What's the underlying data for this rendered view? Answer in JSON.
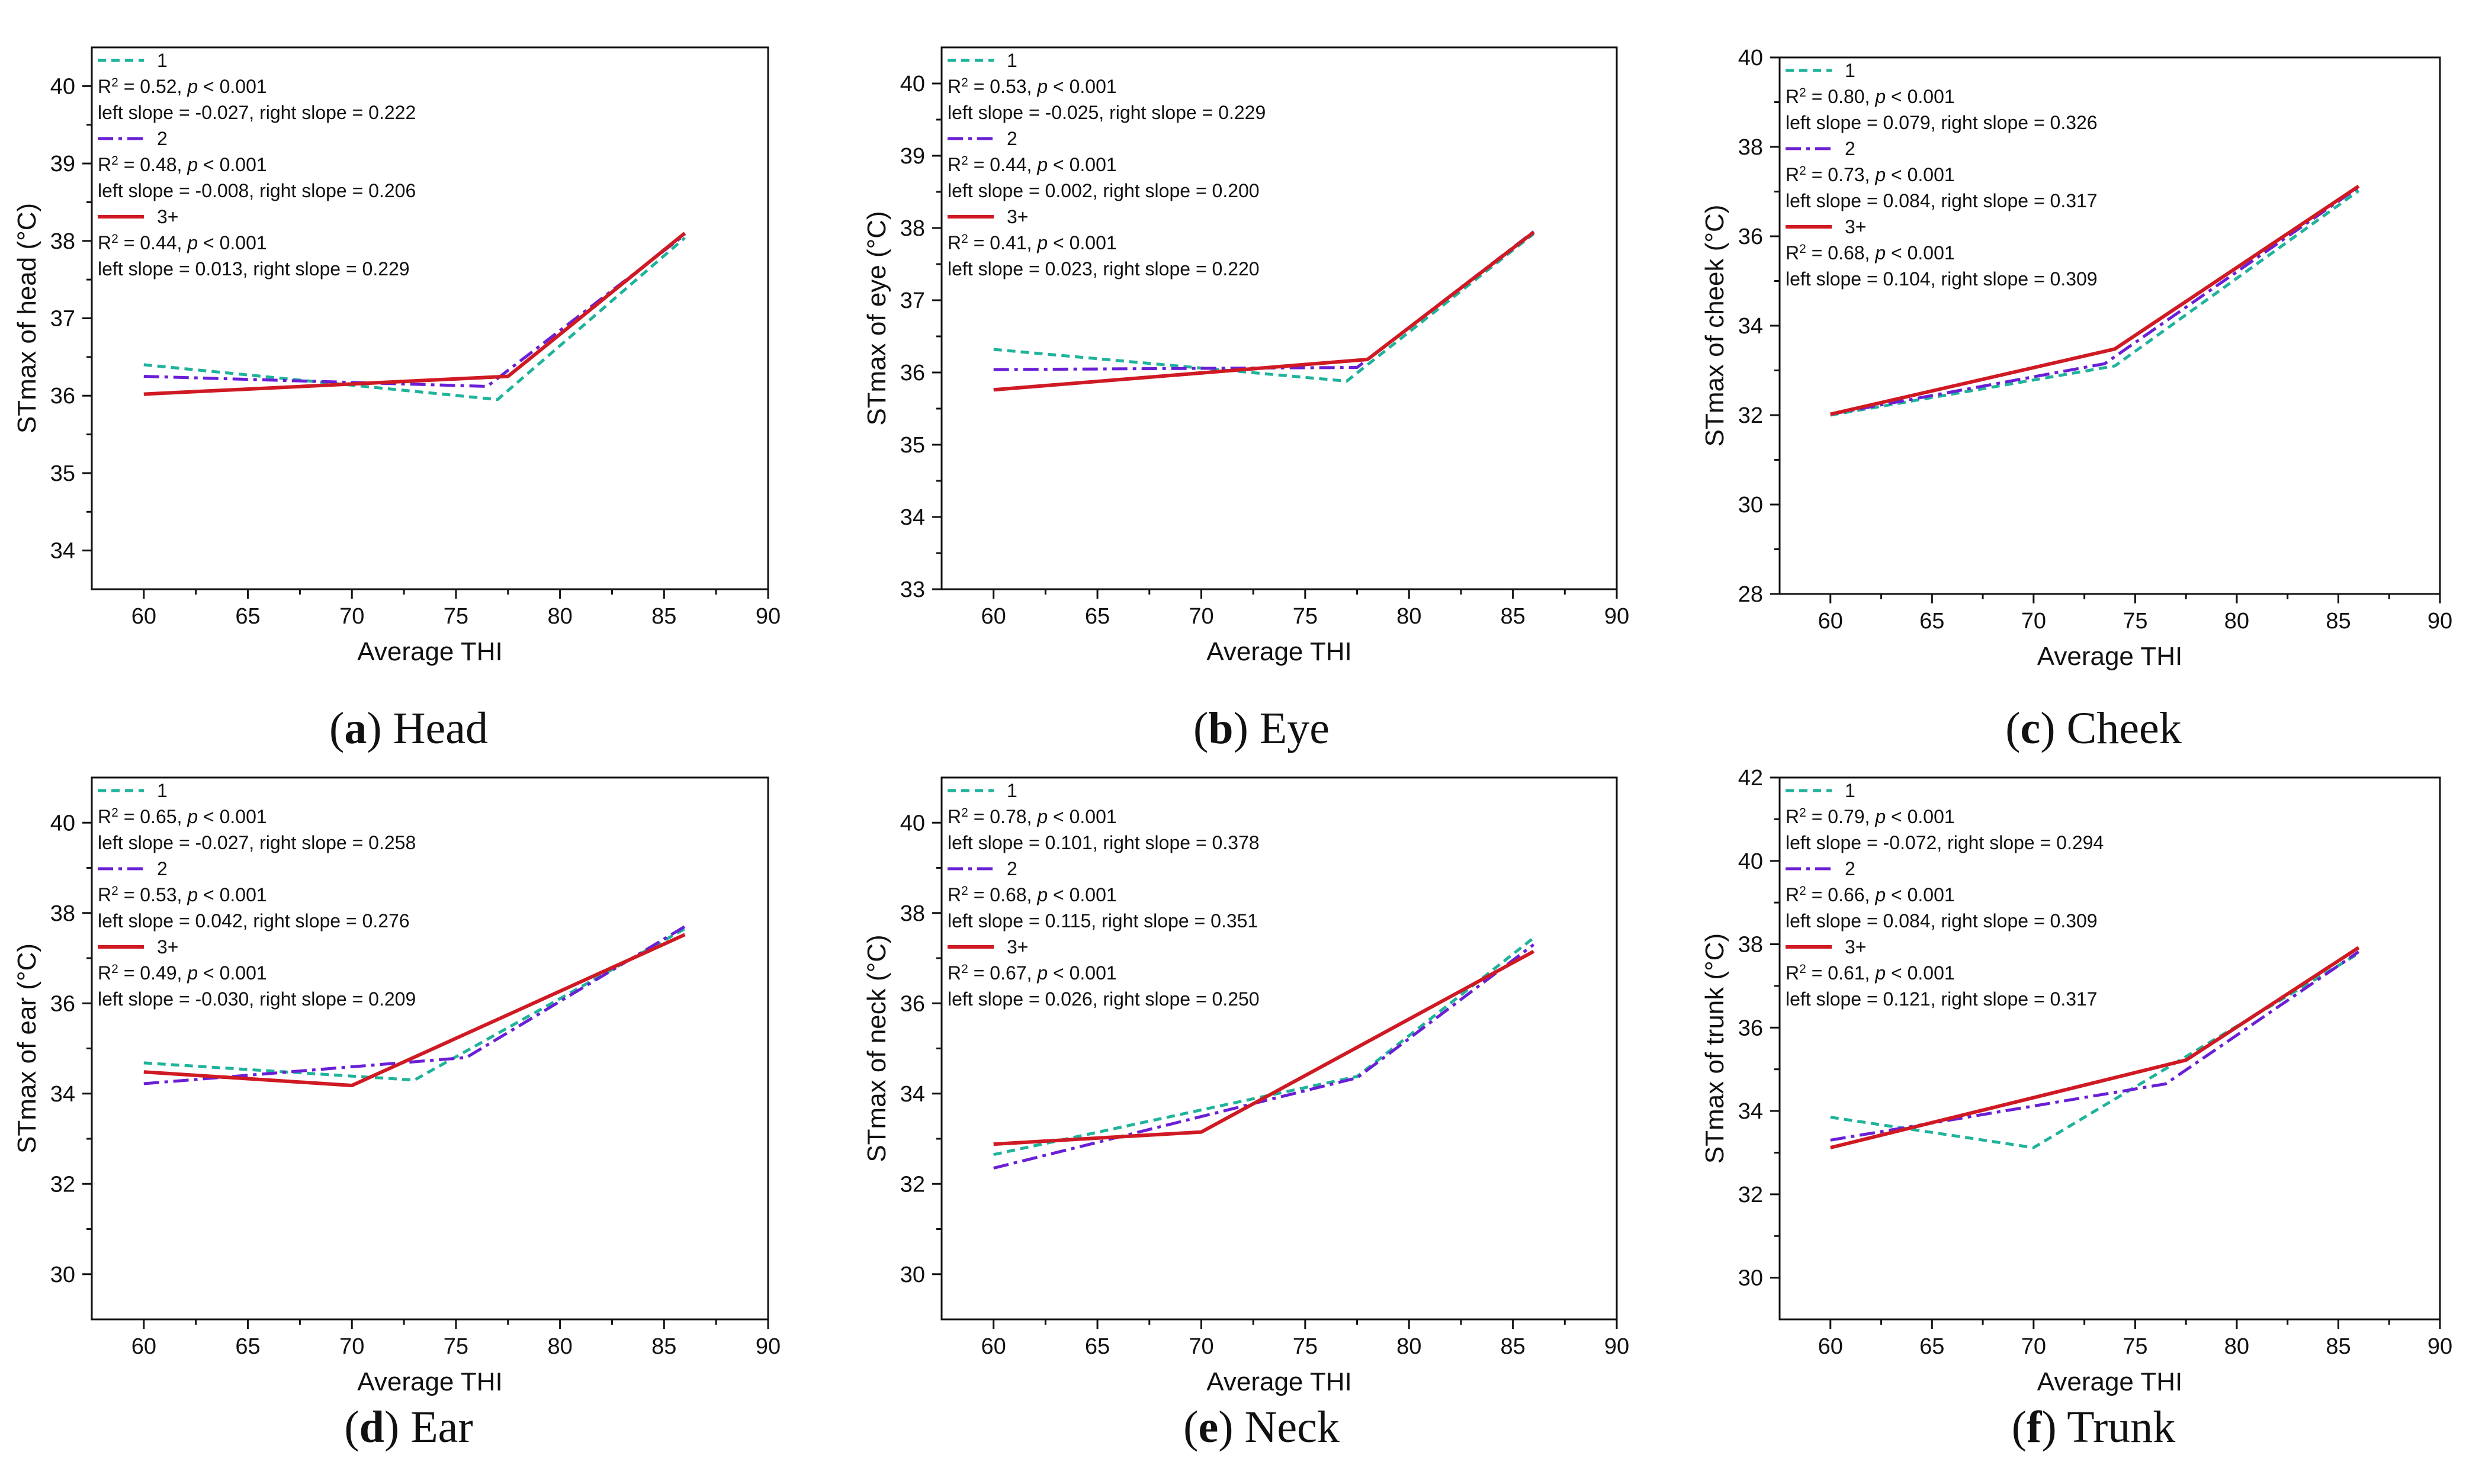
{
  "colors": {
    "s1": "#1fb39b",
    "s2": "#6a1fd6",
    "s3": "#cf1a24"
  },
  "chart_data": [
    {
      "type": "line",
      "panel": "a",
      "caption_letter": "a",
      "caption_text": "Head",
      "xlabel": "Average THI",
      "ylabel": "STmax of head (°C)",
      "xlim": [
        57.5,
        90
      ],
      "xticks": [
        60,
        65,
        70,
        75,
        80,
        85,
        90
      ],
      "ylim": [
        33.5,
        40.5
      ],
      "yticks": [
        34,
        35,
        36,
        37,
        38,
        39,
        40
      ],
      "legend_position": "top-left",
      "series": [
        {
          "name": "1",
          "r2": "0.52",
          "p_text": "0.001",
          "slopes": "left slope = -0.027, right slope = 0.222",
          "points": [
            [
              60,
              36.4
            ],
            [
              77,
              35.95
            ],
            [
              86,
              38.04
            ]
          ]
        },
        {
          "name": "2",
          "r2": "0.48",
          "p_text": "0.001",
          "slopes": "left slope = -0.008, right slope = 0.206",
          "points": [
            [
              60,
              36.25
            ],
            [
              76.5,
              36.12
            ],
            [
              86,
              38.08
            ]
          ]
        },
        {
          "name": "3+",
          "r2": "0.44",
          "p_text": "0.001",
          "slopes": "left slope = 0.013, right slope = 0.229",
          "points": [
            [
              60,
              36.02
            ],
            [
              77.5,
              36.25
            ],
            [
              86,
              38.1
            ]
          ]
        }
      ]
    },
    {
      "type": "line",
      "panel": "b",
      "caption_letter": "b",
      "caption_text": "Eye",
      "xlabel": "Average THI",
      "ylabel": "STmax of eye (°C)",
      "xlim": [
        57.5,
        90
      ],
      "xticks": [
        60,
        65,
        70,
        75,
        80,
        85,
        90
      ],
      "ylim": [
        33,
        40.5
      ],
      "yticks": [
        33,
        34,
        35,
        36,
        37,
        38,
        39,
        40
      ],
      "legend_position": "top-left",
      "series": [
        {
          "name": "1",
          "r2": "0.53",
          "p_text": "0.001",
          "slopes": "left slope = -0.025, right slope = 0.229",
          "points": [
            [
              60,
              36.32
            ],
            [
              77,
              35.88
            ],
            [
              86,
              37.92
            ]
          ]
        },
        {
          "name": "2",
          "r2": "0.44",
          "p_text": "0.001",
          "slopes": "left slope = 0.002, right slope = 0.200",
          "points": [
            [
              60,
              36.04
            ],
            [
              77.5,
              36.07
            ],
            [
              86,
              37.95
            ]
          ]
        },
        {
          "name": "3+",
          "r2": "0.41",
          "p_text": "0.001",
          "slopes": "left slope = 0.023, right slope = 0.220",
          "points": [
            [
              60,
              35.76
            ],
            [
              78,
              36.18
            ],
            [
              86,
              37.94
            ]
          ]
        }
      ]
    },
    {
      "type": "line",
      "panel": "c",
      "caption_letter": "c",
      "caption_text": "Cheek",
      "xlabel": "Average THI",
      "ylabel": "STmax of cheek (°C)",
      "xlim": [
        57.5,
        90
      ],
      "xticks": [
        60,
        65,
        70,
        75,
        80,
        85,
        90
      ],
      "ylim": [
        28,
        40
      ],
      "yticks": [
        28,
        30,
        32,
        34,
        36,
        38,
        40
      ],
      "legend_position": "top-left",
      "series": [
        {
          "name": "1",
          "r2": "0.80",
          "p_text": "0.001",
          "slopes": "left slope = 0.079, right slope = 0.326",
          "points": [
            [
              60,
              32.0
            ],
            [
              74,
              33.1
            ],
            [
              86,
              37.02
            ]
          ]
        },
        {
          "name": "2",
          "r2": "0.73",
          "p_text": "0.001",
          "slopes": "left slope = 0.084, right slope = 0.317",
          "points": [
            [
              60,
              32.02
            ],
            [
              73.5,
              33.15
            ],
            [
              86,
              37.1
            ]
          ]
        },
        {
          "name": "3+",
          "r2": "0.68",
          "p_text": "0.001",
          "slopes": "left slope = 0.104, right slope = 0.309",
          "points": [
            [
              60,
              32.02
            ],
            [
              74,
              33.48
            ],
            [
              86,
              37.12
            ]
          ]
        }
      ]
    },
    {
      "type": "line",
      "panel": "d",
      "caption_letter": "d",
      "caption_text": "Ear",
      "xlabel": "Average THI",
      "ylabel": "STmax of ear (°C)",
      "xlim": [
        57.5,
        90
      ],
      "xticks": [
        60,
        65,
        70,
        75,
        80,
        85,
        90
      ],
      "ylim": [
        29,
        41
      ],
      "yticks": [
        30,
        32,
        34,
        36,
        38,
        40
      ],
      "legend_position": "top-left",
      "series": [
        {
          "name": "1",
          "r2": "0.65",
          "p_text": "0.001",
          "slopes": "left slope = -0.027, right slope = 0.258",
          "points": [
            [
              60,
              34.68
            ],
            [
              73,
              34.3
            ],
            [
              86,
              37.65
            ]
          ]
        },
        {
          "name": "2",
          "r2": "0.53",
          "p_text": "0.001",
          "slopes": "left slope = 0.042, right slope = 0.276",
          "points": [
            [
              60,
              34.22
            ],
            [
              75.5,
              34.8
            ],
            [
              86,
              37.7
            ]
          ]
        },
        {
          "name": "3+",
          "r2": "0.49",
          "p_text": "0.001",
          "slopes": "left slope = -0.030, right slope = 0.209",
          "points": [
            [
              60,
              34.48
            ],
            [
              70,
              34.18
            ],
            [
              86,
              37.52
            ]
          ]
        }
      ]
    },
    {
      "type": "line",
      "panel": "e",
      "caption_letter": "e",
      "caption_text": "Neck",
      "xlabel": "Average THI",
      "ylabel": "STmax of neck (°C)",
      "xlim": [
        57.5,
        90
      ],
      "xticks": [
        60,
        65,
        70,
        75,
        80,
        85,
        90
      ],
      "ylim": [
        29,
        41
      ],
      "yticks": [
        30,
        32,
        34,
        36,
        38,
        40
      ],
      "legend_position": "top-left",
      "series": [
        {
          "name": "1",
          "r2": "0.78",
          "p_text": "0.001",
          "slopes": "left slope = 0.101, right slope = 0.378",
          "points": [
            [
              60,
              32.65
            ],
            [
              77.5,
              34.38
            ],
            [
              86,
              37.45
            ]
          ]
        },
        {
          "name": "2",
          "r2": "0.68",
          "p_text": "0.001",
          "slopes": "left slope = 0.115, right slope = 0.351",
          "points": [
            [
              60,
              32.35
            ],
            [
              77.5,
              34.35
            ],
            [
              86,
              37.3
            ]
          ]
        },
        {
          "name": "3+",
          "r2": "0.67",
          "p_text": "0.001",
          "slopes": "left slope = 0.026, right slope = 0.250",
          "points": [
            [
              60,
              32.88
            ],
            [
              70,
              33.15
            ],
            [
              86,
              37.15
            ]
          ]
        }
      ]
    },
    {
      "type": "line",
      "panel": "f",
      "caption_letter": "f",
      "caption_text": "Trunk",
      "xlabel": "Average THI",
      "ylabel": "STmax of trunk (°C)",
      "xlim": [
        57.5,
        90
      ],
      "xticks": [
        60,
        65,
        70,
        75,
        80,
        85,
        90
      ],
      "ylim": [
        29,
        42
      ],
      "yticks": [
        30,
        32,
        34,
        36,
        38,
        40,
        42
      ],
      "legend_position": "top-left",
      "series": [
        {
          "name": "1",
          "r2": "0.79",
          "p_text": "0.001",
          "slopes": "left slope = -0.072, right slope = 0.294",
          "points": [
            [
              60,
              33.85
            ],
            [
              70,
              33.12
            ],
            [
              86,
              37.78
            ]
          ]
        },
        {
          "name": "2",
          "r2": "0.66",
          "p_text": "0.001",
          "slopes": "left slope = 0.084, right slope = 0.309",
          "points": [
            [
              60,
              33.3
            ],
            [
              76.5,
              34.65
            ],
            [
              86,
              37.82
            ]
          ]
        },
        {
          "name": "3+",
          "r2": "0.61",
          "p_text": "0.001",
          "slopes": "left slope = 0.121, right slope = 0.317",
          "points": [
            [
              60,
              33.12
            ],
            [
              77.5,
              35.22
            ],
            [
              86,
              37.92
            ]
          ]
        }
      ]
    }
  ]
}
